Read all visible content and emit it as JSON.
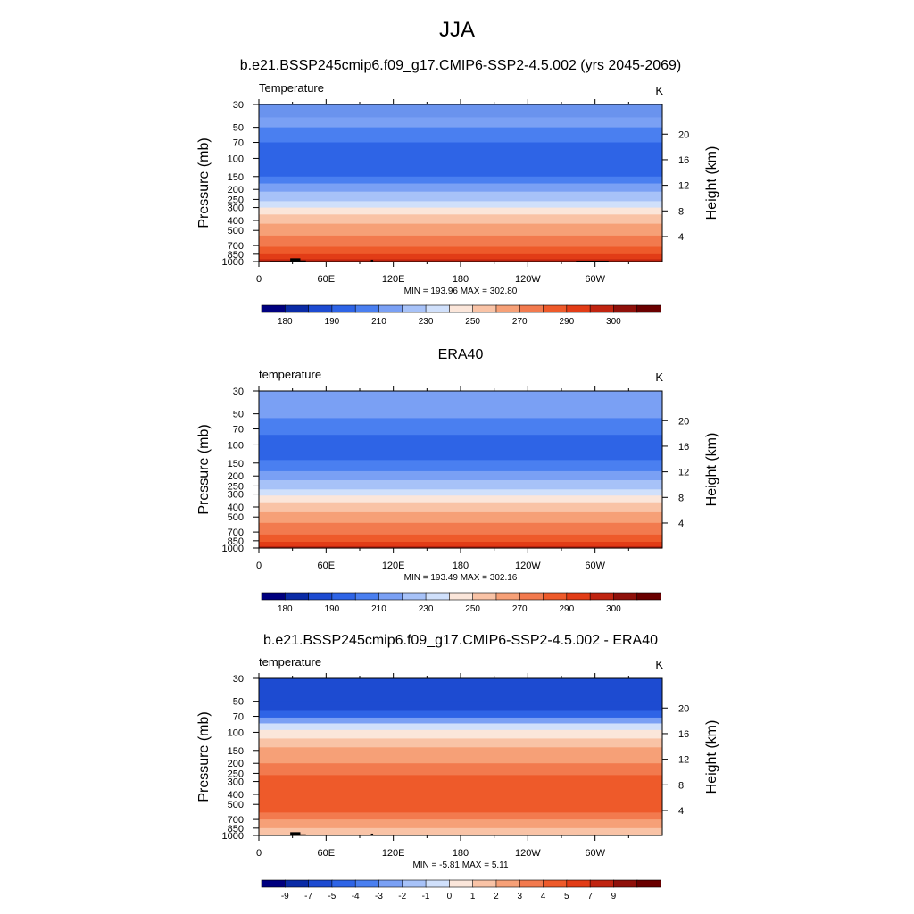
{
  "page_title": "JJA",
  "chart_data": [
    {
      "type": "heatmap",
      "title": "b.e21.BSSP245cmip6.f09_g17.CMIP6-SSP2-4.5.002 (yrs 2045-2069)",
      "variable_label": "Temperature",
      "units": "K",
      "xlabel": "",
      "ylabel": "Pressure (mb)",
      "y2label": "Height (km)",
      "x_ticks": [
        "0",
        "60E",
        "120E",
        "180",
        "120W",
        "60W"
      ],
      "x_tick_lon": [
        0,
        60,
        120,
        180,
        240,
        300
      ],
      "xlim": [
        0,
        360
      ],
      "y_ticks": [
        "30",
        "50",
        "70",
        "100",
        "150",
        "200",
        "250",
        "300",
        "400",
        "500",
        "700",
        "850",
        "1000"
      ],
      "y_tick_p": [
        30,
        50,
        70,
        100,
        150,
        200,
        250,
        300,
        400,
        500,
        700,
        850,
        1000
      ],
      "ylim_p": [
        30,
        1000
      ],
      "y_scale": "log",
      "y2_ticks": [
        "20",
        "16",
        "12",
        "8",
        "4"
      ],
      "y2_tick_km": [
        20,
        16,
        12,
        8,
        4
      ],
      "stats": "MIN = 193.96  MAX = 302.80",
      "min": 193.96,
      "max": 302.8,
      "cb_labels": [
        "180",
        "190",
        "210",
        "230",
        "250",
        "270",
        "290",
        "300"
      ],
      "colorbar": [
        "#00007f",
        "#0a2ba6",
        "#1d4bd1",
        "#2e64e6",
        "#4a7ff0",
        "#7aa0f4",
        "#a7c2f8",
        "#d0e0fb",
        "#fbe6da",
        "#f9c3a6",
        "#f6a077",
        "#f27a4e",
        "#ee5a2a",
        "#e23c16",
        "#c02410",
        "#8f100a",
        "#6a0000"
      ],
      "bands": [
        {
          "p": 30,
          "color": "#6a93ee"
        },
        {
          "p": 40,
          "color": "#7aa0f4"
        },
        {
          "p": 50,
          "color": "#4a7ff0"
        },
        {
          "p": 70,
          "color": "#2e64e6"
        },
        {
          "p": 110,
          "color": "#2e64e6"
        },
        {
          "p": 150,
          "color": "#4a7ff0"
        },
        {
          "p": 175,
          "color": "#7aa0f4"
        },
        {
          "p": 210,
          "color": "#a7c2f8"
        },
        {
          "p": 260,
          "color": "#d0e0fb"
        },
        {
          "p": 300,
          "color": "#fbe6da"
        },
        {
          "p": 350,
          "color": "#f9c3a6"
        },
        {
          "p": 430,
          "color": "#f6a077"
        },
        {
          "p": 560,
          "color": "#f27a4e"
        },
        {
          "p": 720,
          "color": "#ee5a2a"
        },
        {
          "p": 850,
          "color": "#e23c16"
        },
        {
          "p": 950,
          "color": "#c02410"
        },
        {
          "p": 1000,
          "color": "#c02410"
        }
      ],
      "terrain": [
        {
          "lon0": 10,
          "lon1": 35,
          "p_top": 985
        },
        {
          "lon0": 28,
          "lon1": 37,
          "p_top": 930
        },
        {
          "lon0": 34,
          "lon1": 42,
          "p_top": 975
        },
        {
          "lon0": 100,
          "lon1": 102,
          "p_top": 960
        },
        {
          "lon0": 283,
          "lon1": 312,
          "p_top": 980
        }
      ]
    },
    {
      "type": "heatmap",
      "title": "ERA40",
      "variable_label": "temperature",
      "units": "K",
      "xlabel": "",
      "ylabel": "Pressure (mb)",
      "y2label": "Height (km)",
      "x_ticks": [
        "0",
        "60E",
        "120E",
        "180",
        "120W",
        "60W"
      ],
      "x_tick_lon": [
        0,
        60,
        120,
        180,
        240,
        300
      ],
      "xlim": [
        0,
        360
      ],
      "y_ticks": [
        "30",
        "50",
        "70",
        "100",
        "150",
        "200",
        "250",
        "300",
        "400",
        "500",
        "700",
        "850",
        "1000"
      ],
      "y_tick_p": [
        30,
        50,
        70,
        100,
        150,
        200,
        250,
        300,
        400,
        500,
        700,
        850,
        1000
      ],
      "ylim_p": [
        30,
        1000
      ],
      "y_scale": "log",
      "y2_ticks": [
        "20",
        "16",
        "12",
        "8",
        "4"
      ],
      "y2_tick_km": [
        20,
        16,
        12,
        8,
        4
      ],
      "stats": "MIN = 193.49  MAX = 302.16",
      "min": 193.49,
      "max": 302.16,
      "cb_labels": [
        "180",
        "190",
        "210",
        "230",
        "250",
        "270",
        "290",
        "300"
      ],
      "colorbar": [
        "#00007f",
        "#0a2ba6",
        "#1d4bd1",
        "#2e64e6",
        "#4a7ff0",
        "#7aa0f4",
        "#a7c2f8",
        "#d0e0fb",
        "#fbe6da",
        "#f9c3a6",
        "#f6a077",
        "#f27a4e",
        "#ee5a2a",
        "#e23c16",
        "#c02410",
        "#8f100a",
        "#6a0000"
      ],
      "bands": [
        {
          "p": 30,
          "color": "#7aa0f4"
        },
        {
          "p": 45,
          "color": "#7aa0f4"
        },
        {
          "p": 55,
          "color": "#4a7ff0"
        },
        {
          "p": 80,
          "color": "#2e64e6"
        },
        {
          "p": 120,
          "color": "#2e64e6"
        },
        {
          "p": 140,
          "color": "#4a7ff0"
        },
        {
          "p": 180,
          "color": "#7aa0f4"
        },
        {
          "p": 220,
          "color": "#a7c2f8"
        },
        {
          "p": 270,
          "color": "#d0e0fb"
        },
        {
          "p": 310,
          "color": "#fbe6da"
        },
        {
          "p": 360,
          "color": "#f9c3a6"
        },
        {
          "p": 450,
          "color": "#f6a077"
        },
        {
          "p": 570,
          "color": "#f27a4e"
        },
        {
          "p": 740,
          "color": "#ee5a2a"
        },
        {
          "p": 870,
          "color": "#e23c16"
        },
        {
          "p": 960,
          "color": "#c02410"
        },
        {
          "p": 1000,
          "color": "#c02410"
        }
      ],
      "terrain": []
    },
    {
      "type": "heatmap",
      "title": "b.e21.BSSP245cmip6.f09_g17.CMIP6-SSP2-4.5.002 - ERA40",
      "variable_label": "temperature",
      "units": "K",
      "xlabel": "",
      "ylabel": "Pressure (mb)",
      "y2label": "Height (km)",
      "x_ticks": [
        "0",
        "60E",
        "120E",
        "180",
        "120W",
        "60W"
      ],
      "x_tick_lon": [
        0,
        60,
        120,
        180,
        240,
        300
      ],
      "xlim": [
        0,
        360
      ],
      "y_ticks": [
        "30",
        "50",
        "70",
        "100",
        "150",
        "200",
        "250",
        "300",
        "400",
        "500",
        "700",
        "850",
        "1000"
      ],
      "y_tick_p": [
        30,
        50,
        70,
        100,
        150,
        200,
        250,
        300,
        400,
        500,
        700,
        850,
        1000
      ],
      "ylim_p": [
        30,
        1000
      ],
      "y_scale": "log",
      "y2_ticks": [
        "20",
        "16",
        "12",
        "8",
        "4"
      ],
      "y2_tick_km": [
        20,
        16,
        12,
        8,
        4
      ],
      "stats": "MIN =  -5.81  MAX =   5.11",
      "min": -5.81,
      "max": 5.11,
      "cb_labels": [
        "-9",
        "-7",
        "-5",
        "-4",
        "-3",
        "-2",
        "-1",
        "0",
        "1",
        "2",
        "3",
        "4",
        "5",
        "7",
        "9"
      ],
      "colorbar": [
        "#00007f",
        "#0a2ba6",
        "#1d4bd1",
        "#2e64e6",
        "#4a7ff0",
        "#7aa0f4",
        "#a7c2f8",
        "#d0e0fb",
        "#fbe6da",
        "#f9c3a6",
        "#f6a077",
        "#f27a4e",
        "#ee5a2a",
        "#e23c16",
        "#c02410",
        "#8f100a",
        "#6a0000"
      ],
      "bands": [
        {
          "p": 30,
          "color": "#1d4bd1"
        },
        {
          "p": 50,
          "color": "#1d4bd1"
        },
        {
          "p": 62,
          "color": "#2e64e6"
        },
        {
          "p": 72,
          "color": "#7aa0f4"
        },
        {
          "p": 82,
          "color": "#d0e0fb"
        },
        {
          "p": 95,
          "color": "#fbe6da"
        },
        {
          "p": 115,
          "color": "#f9c3a6"
        },
        {
          "p": 140,
          "color": "#f6a077"
        },
        {
          "p": 200,
          "color": "#f27a4e"
        },
        {
          "p": 260,
          "color": "#ee5a2a"
        },
        {
          "p": 500,
          "color": "#ee5a2a"
        },
        {
          "p": 600,
          "color": "#f27a4e"
        },
        {
          "p": 700,
          "color": "#f6a077"
        },
        {
          "p": 850,
          "color": "#f9c3a6"
        },
        {
          "p": 1000,
          "color": "#f6a077"
        }
      ],
      "terrain": [
        {
          "lon0": 10,
          "lon1": 35,
          "p_top": 985
        },
        {
          "lon0": 28,
          "lon1": 37,
          "p_top": 930
        },
        {
          "lon0": 34,
          "lon1": 42,
          "p_top": 975
        },
        {
          "lon0": 100,
          "lon1": 102,
          "p_top": 960
        },
        {
          "lon0": 283,
          "lon1": 312,
          "p_top": 980
        }
      ]
    }
  ]
}
